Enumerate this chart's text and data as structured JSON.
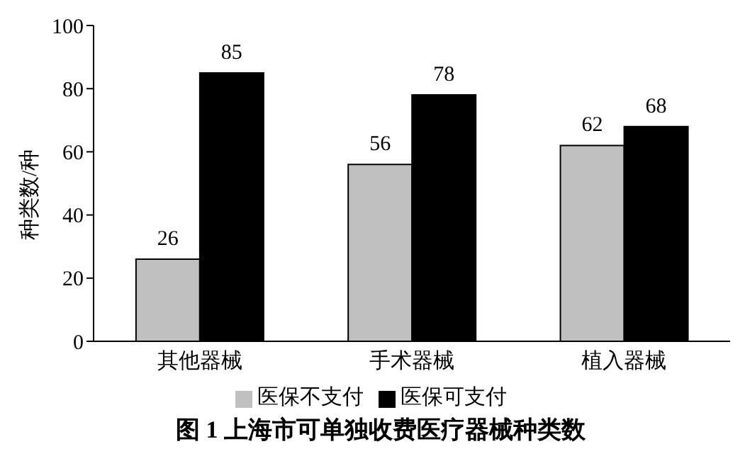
{
  "chart_data": {
    "type": "bar",
    "title": "图 1 上海市可单独收费医疗器械种类数",
    "ylabel": "种类数/种",
    "categories": [
      "其他器械",
      "手术器械",
      "植入器械"
    ],
    "series": [
      {
        "name": "医保不支付",
        "color": "#c0c0c0",
        "values": [
          26,
          56,
          62
        ]
      },
      {
        "name": "医保可支付",
        "color": "#000000",
        "values": [
          85,
          78,
          68
        ]
      }
    ],
    "ylim": [
      0,
      100
    ],
    "yticks": [
      0,
      20,
      40,
      60,
      80,
      100
    ],
    "grid": false,
    "legend": "bottom",
    "data_labels": true
  }
}
